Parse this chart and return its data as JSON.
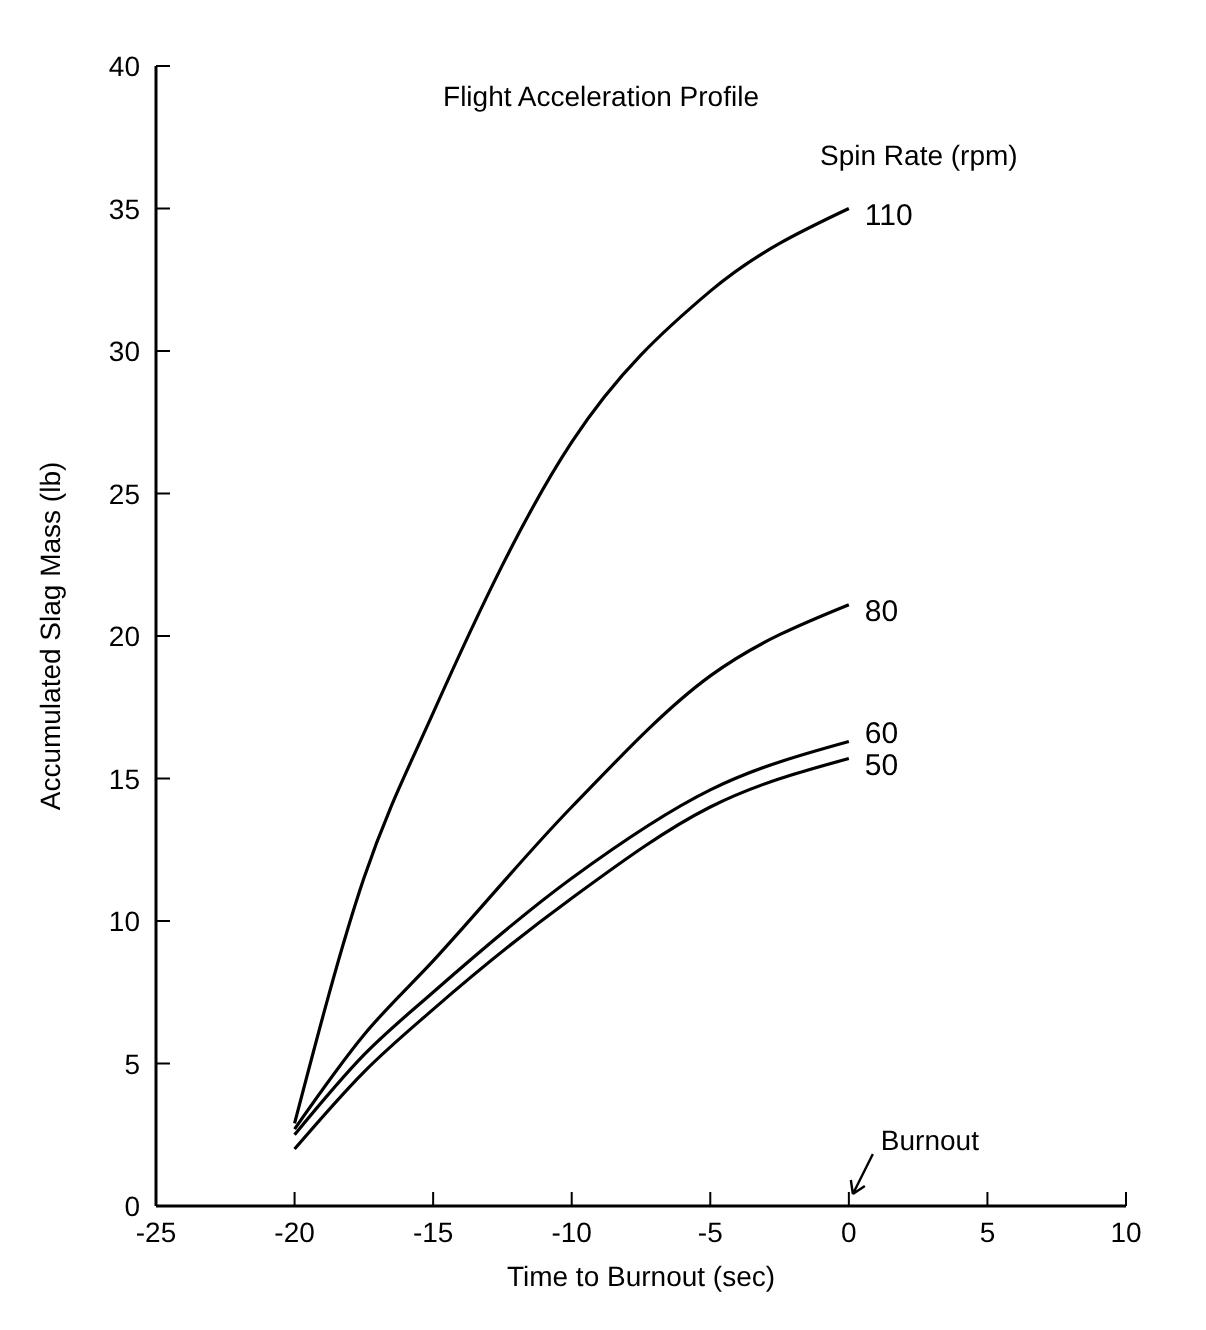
{
  "chart_data": {
    "type": "line",
    "title": "Flight Acceleration Profile",
    "xlabel": "Time to Burnout (sec)",
    "ylabel": "Accumulated Slag Mass (lb)",
    "legend_title": "Spin Rate (rpm)",
    "x": [
      -20,
      -17.5,
      -15,
      -10,
      -5,
      0
    ],
    "series": [
      {
        "name": "110",
        "color": "#000000",
        "values": [
          2.9,
          11.5,
          17.3,
          26.8,
          32.1,
          35
        ]
      },
      {
        "name": "80",
        "color": "#000000",
        "values": [
          2.7,
          6,
          8.6,
          14,
          18.6,
          21.1
        ]
      },
      {
        "name": "60",
        "color": "#000000",
        "values": [
          2.5,
          5.3,
          7.5,
          11.5,
          14.6,
          16.3
        ]
      },
      {
        "name": "50",
        "color": "#000000",
        "values": [
          2,
          4.7,
          6.9,
          10.8,
          14,
          15.7
        ]
      }
    ],
    "annotations": [
      "Burnout"
    ],
    "xlim": [
      -25,
      10
    ],
    "ylim": [
      0,
      40
    ],
    "xticks": [
      -25,
      -20,
      -15,
      -10,
      -5,
      0,
      5,
      10
    ],
    "yticks": [
      0,
      5,
      10,
      15,
      20,
      25,
      30,
      35,
      40
    ],
    "grid": false,
    "legend": "top right",
    "marker": "none",
    "line_style": "solid"
  }
}
